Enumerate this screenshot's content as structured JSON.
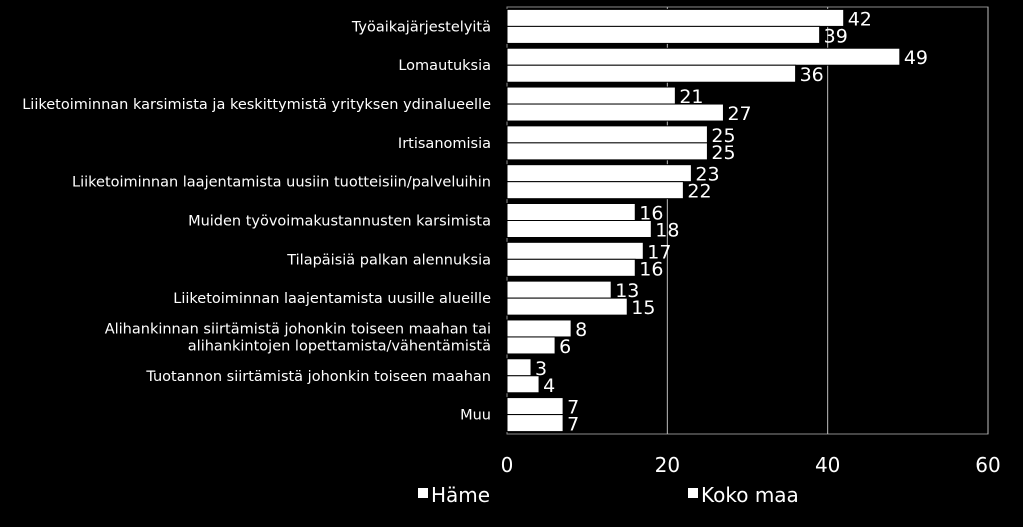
{
  "chart_data": {
    "type": "bar",
    "orientation": "horizontal",
    "categories": [
      "Työaikajärjestelyitä",
      "Lomautuksia",
      "Liiketoiminnan karsimista ja keskittymistä yrityksen ydinalueelle",
      "Irtisanomisia",
      "Liiketoiminnan laajentamista uusiin tuotteisiin/palveluihin",
      "Muiden työvoimakustannusten karsimista",
      "Tilapäisiä palkan alennuksia",
      "Liiketoiminnan laajentamista uusille alueille",
      "Alihankinnan siirtämistä johonkin toiseen maahan tai alihankintojen lopettamista/vähentämistä",
      "Tuotannon siirtämistä johonkin toiseen maahan",
      "Muu"
    ],
    "category_lines": [
      [
        "Työaikajärjestelyitä"
      ],
      [
        "Lomautuksia"
      ],
      [
        "Liiketoiminnan karsimista ja keskittymistä yrityksen ydinalueelle"
      ],
      [
        "Irtisanomisia"
      ],
      [
        "Liiketoiminnan laajentamista uusiin tuotteisiin/palveluihin"
      ],
      [
        "Muiden työvoimakustannusten karsimista"
      ],
      [
        "Tilapäisiä palkan alennuksia"
      ],
      [
        "Liiketoiminnan laajentamista uusille alueille"
      ],
      [
        "Alihankinnan siirtämistä johonkin toiseen maahan tai",
        "alihankintojen lopettamista/vähentämistä"
      ],
      [
        "Tuotannon siirtämistä johonkin toiseen maahan"
      ],
      [
        "Muu"
      ]
    ],
    "series": [
      {
        "name": "Häme",
        "values": [
          42,
          49,
          21,
          25,
          23,
          16,
          17,
          13,
          8,
          3,
          7
        ]
      },
      {
        "name": "Koko maa",
        "values": [
          39,
          36,
          27,
          25,
          22,
          18,
          16,
          15,
          6,
          4,
          7
        ]
      }
    ],
    "xlim": [
      0,
      60
    ],
    "xticks": [
      0,
      20,
      40,
      60
    ],
    "grid": true,
    "legend_position": "bottom",
    "colors": {
      "background": "#000000",
      "bar_fill": "#ffffff",
      "bar_stroke": "#000000",
      "text": "#ffffff",
      "gridline": "#bfbfbf",
      "plot_border": "#8c8c8c"
    }
  }
}
